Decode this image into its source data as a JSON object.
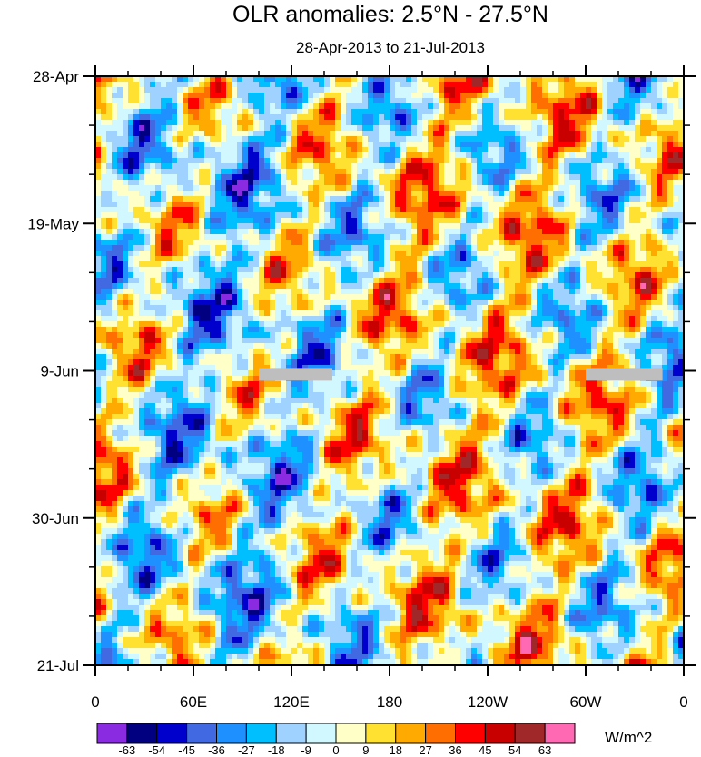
{
  "chart_data": {
    "type": "heatmap",
    "title": "OLR anomalies: 2.5°N - 27.5°N",
    "subtitle": "28-Apr-2013 to 21-Jul-2013",
    "x_ticks": [
      "0",
      "60E",
      "120E",
      "180",
      "120W",
      "60W",
      "0"
    ],
    "x_range_deg": [
      0,
      360
    ],
    "y_ticks": [
      "28-Apr",
      "19-May",
      "9-Jun",
      "30-Jun",
      "21-Jul"
    ],
    "y_range_days": [
      0,
      84
    ],
    "colorbar": {
      "levels": [
        "-63",
        "-54",
        "-45",
        "-36",
        "-27",
        "-18",
        "-9",
        "0",
        "9",
        "18",
        "27",
        "36",
        "45",
        "54",
        "63"
      ],
      "colors": [
        "#8a2be2",
        "#000080",
        "#0000cd",
        "#4169e1",
        "#1e90ff",
        "#00bfff",
        "#a0d2ff",
        "#d2f8ff",
        "#ffffc8",
        "#ffe132",
        "#ffaa00",
        "#ff6e00",
        "#ff0000",
        "#c80000",
        "#a02828",
        "#ff69b4"
      ],
      "units": "W/m^2"
    },
    "missing_data_bands": [
      {
        "lon_start": 100,
        "lon_end": 145,
        "day": 42.5
      },
      {
        "lon_start": 300,
        "lon_end": 347,
        "day": 42.5
      }
    ]
  }
}
